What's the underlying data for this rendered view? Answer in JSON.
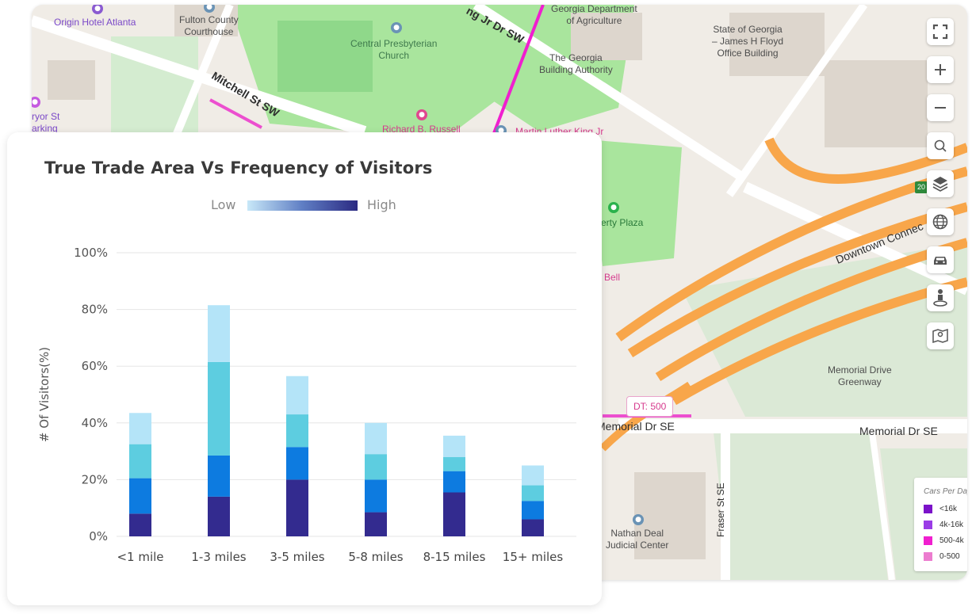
{
  "map": {
    "labels": {
      "origin_hotel": "Origin Hotel Atlanta",
      "fulton_courthouse": "Fulton County\nCourthouse",
      "central_presbyterian": "Central Presbyterian\nChurch",
      "ga_dept_agriculture": "Georgia Department\nof Agriculture",
      "state_of_georgia": "State of Georgia\n– James H Floyd\nOffice Building",
      "ga_building_authority": "The Georgia\nBuilding Authority",
      "mitchell_st": "Mitchell St SW",
      "mlk_dr": "ng Jr Dr SW",
      "ryor_st": "ryor St\narking",
      "richard_russell": "Richard B. Russell",
      "mlk_jr": "Martin Luther King Jr",
      "liberty_plaza": "erty Plaza",
      "bell": "n Bell",
      "downtown_connector": "Downtown Connec",
      "memorial_greenway": "Memorial Drive\nGreenway",
      "memorial_dr_left": "Memorial Dr SE",
      "memorial_dr_right": "Memorial Dr SE",
      "fraser_st": "Fraser St SE",
      "nathan_deal": "Nathan Deal\nJudicial Center",
      "shield_20": "20",
      "aadt": "DT: 500"
    },
    "controls": [
      "fullscreen-icon",
      "zoom-in-icon",
      "zoom-out-icon",
      "search-icon",
      "layers-icon",
      "globe-icon",
      "car-icon",
      "street-view-icon",
      "map-pin-icon"
    ],
    "legend": {
      "title": "Cars Per Day",
      "items": [
        {
          "label": "<16k",
          "color": "#7b12c9"
        },
        {
          "label": "4k-16k",
          "color": "#9a3ce6"
        },
        {
          "label": "500-4k",
          "color": "#f01fcf"
        },
        {
          "label": "0-500",
          "color": "#ec7ccf"
        }
      ]
    }
  },
  "card": {
    "title": "True Trade Area Vs Frequency of Visitors",
    "gradient_low": "Low",
    "gradient_high": "High"
  },
  "chart_data": {
    "type": "bar",
    "stacked": true,
    "title": "True Trade Area Vs Frequency of Visitors",
    "xlabel": "",
    "ylabel": "# Of Visitors(%)",
    "ylim": [
      0,
      100
    ],
    "yticks": [
      "0%",
      "20%",
      "40%",
      "60%",
      "80%",
      "100%"
    ],
    "grid": true,
    "categories": [
      "<1 mile",
      "1-3 miles",
      "3-5 miles",
      "5-8 miles",
      "8-15 miles",
      "15+ miles"
    ],
    "series": [
      {
        "color": "#332b8f",
        "values": [
          8,
          14,
          20,
          8.5,
          15.5,
          6
        ]
      },
      {
        "color": "#0d7be0",
        "values": [
          12.5,
          14.5,
          11.5,
          11.5,
          7.5,
          6.5
        ]
      },
      {
        "color": "#5dcde0",
        "values": [
          12,
          33,
          11.5,
          9,
          5,
          5.5
        ]
      },
      {
        "color": "#b4e4f8",
        "values": [
          11,
          20,
          13.5,
          11,
          7.5,
          7
        ]
      }
    ]
  }
}
